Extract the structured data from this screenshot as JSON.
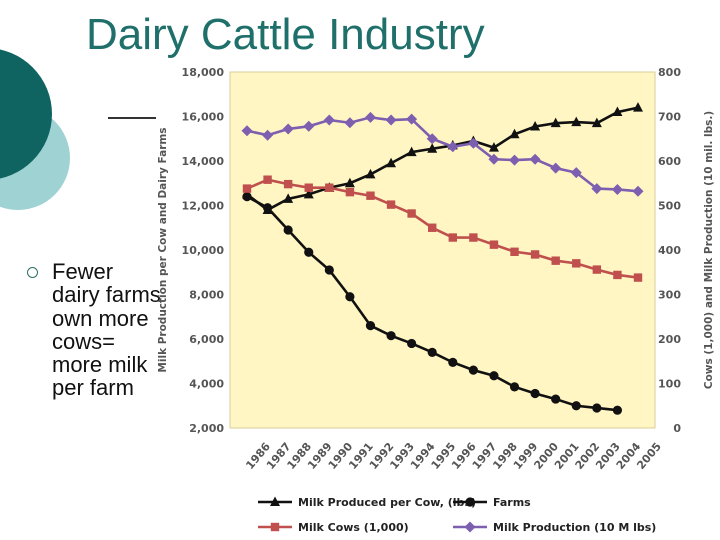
{
  "slide": {
    "title": "Dairy Cattle Industry",
    "bullet": "Fewer dairy farms own more cows= more milk per farm",
    "colors": {
      "title": "#1f6f6a",
      "circle_dark": "#0f6461",
      "circle_light": "#9fd2d3",
      "plot_bg": "#fff6c4"
    }
  },
  "chart_data": {
    "type": "line",
    "categories": [
      "1986",
      "1987",
      "1988",
      "1989",
      "1990",
      "1991",
      "1992",
      "1993",
      "1994",
      "1995",
      "1996",
      "1997",
      "1998",
      "1999",
      "2000",
      "2001",
      "2002",
      "2003",
      "2004",
      "2005"
    ],
    "ylabel_left": "Milk Production per Cow and Dairy Farms",
    "ylabel_right": "Cows (1,000) and Milk Production (10 mil. lbs.)",
    "ylim_left": [
      2000,
      18000
    ],
    "ylim_right": [
      0,
      800
    ],
    "yticks_left": [
      "2,000",
      "4,000",
      "6,000",
      "8,000",
      "10,000",
      "12,000",
      "14,000",
      "16,000",
      "18,000"
    ],
    "yticks_right": [
      "0",
      "100",
      "200",
      "300",
      "400",
      "500",
      "600",
      "700",
      "800"
    ],
    "legend": "bottom",
    "series": [
      {
        "name": "Milk Produced per Cow, (lbs)",
        "axis": "left",
        "marker": "triangle",
        "color": "#111111",
        "values": [
          12500,
          11800,
          12300,
          12500,
          12800,
          13000,
          13400,
          13900,
          14400,
          14550,
          14700,
          14900,
          14600,
          15200,
          15550,
          15700,
          15750,
          15700,
          16200,
          16400
        ]
      },
      {
        "name": "Farms",
        "axis": "left",
        "marker": "circle",
        "color": "#111111",
        "values": [
          12400,
          11900,
          10900,
          9900,
          9100,
          7900,
          6600,
          6150,
          5800,
          5400,
          4950,
          4600,
          4350,
          3850,
          3550,
          3300,
          3000,
          2900,
          2800,
          null
        ]
      },
      {
        "name": "Milk Cows (1,000)",
        "axis": "right",
        "marker": "square",
        "color": "#c0504d",
        "values": [
          538,
          558,
          548,
          540,
          540,
          530,
          522,
          502,
          482,
          450,
          428,
          428,
          412,
          396,
          390,
          376,
          370,
          356,
          344,
          338
        ]
      },
      {
        "name": "Milk Production (10 M lbs)",
        "axis": "right",
        "marker": "diamond",
        "color": "#7d5fb0",
        "values": [
          668,
          658,
          672,
          678,
          692,
          686,
          698,
          692,
          694,
          650,
          632,
          640,
          604,
          602,
          604,
          584,
          574,
          538,
          536,
          532
        ]
      }
    ]
  }
}
